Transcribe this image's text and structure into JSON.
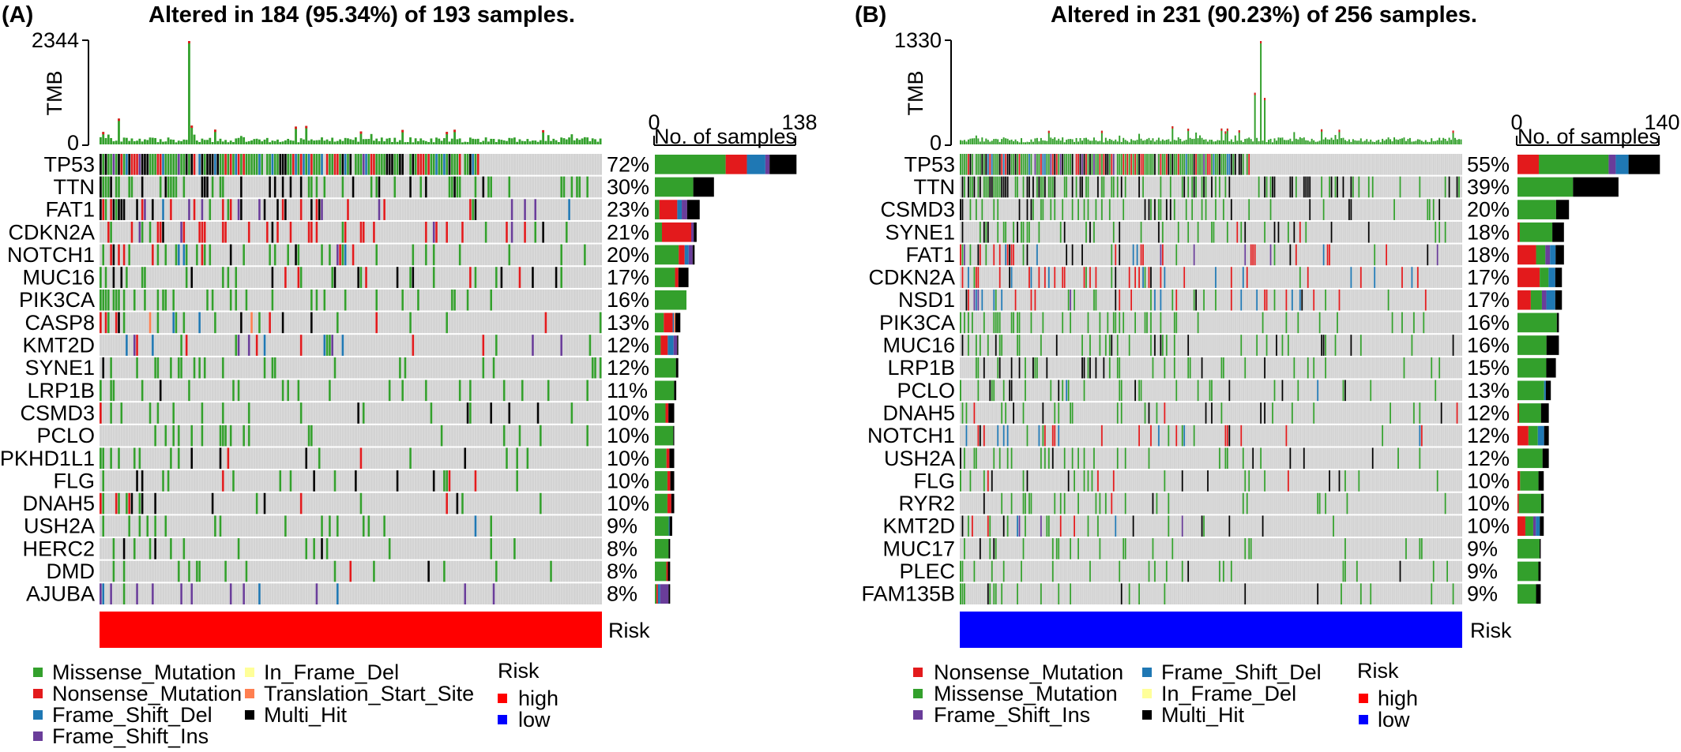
{
  "chart_data": [
    {
      "type": "heatmap",
      "panel_label": "(A)",
      "title": "Altered in 184 (95.34%) of 193 samples.",
      "n_samples": 193,
      "tmb": {
        "axis_label": "TMB",
        "max_label": "2344",
        "min_label": "0",
        "max": 2344
      },
      "bar_axis": {
        "title": "No. of samples",
        "min_label": "0",
        "max_label": "138",
        "max": 138
      },
      "genes": [
        "TP53",
        "TTN",
        "FAT1",
        "CDKN2A",
        "NOTCH1",
        "MUC16",
        "PIK3CA",
        "CASP8",
        "KMT2D",
        "SYNE1",
        "LRP1B",
        "CSMD3",
        "PCLO",
        "PKHD1L1",
        "FLG",
        "DNAH5",
        "USH2A",
        "HERC2",
        "DMD",
        "AJUBA"
      ],
      "percents": [
        "72%",
        "30%",
        "23%",
        "21%",
        "20%",
        "17%",
        "16%",
        "13%",
        "12%",
        "12%",
        "11%",
        "10%",
        "10%",
        "10%",
        "10%",
        "10%",
        "9%",
        "8%",
        "8%",
        "8%"
      ],
      "percent_values": [
        72,
        30,
        23,
        21,
        20,
        17,
        16,
        13,
        12,
        12,
        11,
        10,
        10,
        10,
        10,
        10,
        9,
        8,
        8,
        8
      ],
      "sample_counts": [
        139,
        58,
        44,
        41,
        39,
        33,
        31,
        25,
        23,
        23,
        21,
        19,
        19,
        19,
        19,
        19,
        17,
        15,
        15,
        15
      ],
      "bar_mix": [
        {
          "Missense_Mutation": 0.5,
          "Nonsense_Mutation": 0.15,
          "Frame_Shift_Del": 0.13,
          "Frame_Shift_Ins": 0.03,
          "Multi_Hit": 0.19
        },
        {
          "Missense_Mutation": 0.65,
          "Multi_Hit": 0.35
        },
        {
          "Nonsense_Mutation": 0.4,
          "Frame_Shift_Del": 0.1,
          "Frame_Shift_Ins": 0.12,
          "Missense_Mutation": 0.1,
          "Multi_Hit": 0.28
        },
        {
          "Missense_Mutation": 0.17,
          "Nonsense_Mutation": 0.7,
          "Frame_Shift_Ins": 0.06,
          "Multi_Hit": 0.07
        },
        {
          "Missense_Mutation": 0.6,
          "Nonsense_Mutation": 0.15,
          "Frame_Shift_Del": 0.1,
          "Frame_Shift_Ins": 0.1,
          "Multi_Hit": 0.05
        },
        {
          "Missense_Mutation": 0.6,
          "Nonsense_Mutation": 0.1,
          "Multi_Hit": 0.3
        },
        {
          "Missense_Mutation": 1.0
        },
        {
          "Missense_Mutation": 0.35,
          "Nonsense_Mutation": 0.35,
          "Frame_Shift_Del": 0.05,
          "Translation_Start_Site": 0.05,
          "Multi_Hit": 0.2
        },
        {
          "Missense_Mutation": 0.25,
          "Nonsense_Mutation": 0.3,
          "Frame_Shift_Del": 0.25,
          "Frame_Shift_Ins": 0.15,
          "Multi_Hit": 0.05
        },
        {
          "Missense_Mutation": 0.9,
          "Multi_Hit": 0.1
        },
        {
          "Missense_Mutation": 0.9,
          "Multi_Hit": 0.1
        },
        {
          "Missense_Mutation": 0.55,
          "Nonsense_Mutation": 0.15,
          "Multi_Hit": 0.3
        },
        {
          "Missense_Mutation": 0.95,
          "Multi_Hit": 0.05
        },
        {
          "Missense_Mutation": 0.6,
          "Nonsense_Mutation": 0.15,
          "Multi_Hit": 0.25
        },
        {
          "Missense_Mutation": 0.65,
          "Nonsense_Mutation": 0.15,
          "Multi_Hit": 0.2
        },
        {
          "Missense_Mutation": 0.65,
          "Nonsense_Mutation": 0.2,
          "Multi_Hit": 0.15
        },
        {
          "Missense_Mutation": 0.8,
          "Frame_Shift_Del": 0.05,
          "Multi_Hit": 0.15
        },
        {
          "Missense_Mutation": 0.9,
          "Multi_Hit": 0.1
        },
        {
          "Missense_Mutation": 0.75,
          "Nonsense_Mutation": 0.1,
          "Multi_Hit": 0.15
        },
        {
          "Frame_Shift_Ins": 0.55,
          "Frame_Shift_Del": 0.15,
          "Nonsense_Mutation": 0.1,
          "Missense_Mutation": 0.1,
          "Multi_Hit": 0.1
        }
      ],
      "risk_label": "Risk",
      "risk_group": "high",
      "legend": {
        "items": [
          {
            "label": "Missense_Mutation",
            "color": "#33a02c"
          },
          {
            "label": "Nonsense_Mutation",
            "color": "#e31a1c"
          },
          {
            "label": "Frame_Shift_Del",
            "color": "#1f78b4"
          },
          {
            "label": "Frame_Shift_Ins",
            "color": "#6a3d9a"
          },
          {
            "label": "In_Frame_Del",
            "color": "#ffff99"
          },
          {
            "label": "Translation_Start_Site",
            "color": "#ff7f50"
          },
          {
            "label": "Multi_Hit",
            "color": "#000000"
          }
        ],
        "risk_title": "Risk",
        "risk_items": [
          {
            "label": "high",
            "color": "#ff0000"
          },
          {
            "label": "low",
            "color": "#0000ff"
          }
        ]
      }
    },
    {
      "type": "heatmap",
      "panel_label": "(B)",
      "title": "Altered in 231 (90.23%) of 256 samples.",
      "n_samples": 256,
      "tmb": {
        "axis_label": "TMB",
        "max_label": "1330",
        "min_label": "0",
        "max": 1330
      },
      "bar_axis": {
        "title": "No. of samples",
        "min_label": "0",
        "max_label": "140",
        "max": 140
      },
      "genes": [
        "TP53",
        "TTN",
        "CSMD3",
        "SYNE1",
        "FAT1",
        "CDKN2A",
        "NSD1",
        "PIK3CA",
        "MUC16",
        "LRP1B",
        "PCLO",
        "DNAH5",
        "NOTCH1",
        "USH2A",
        "FLG",
        "RYR2",
        "KMT2D",
        "MUC17",
        "PLEC",
        "FAM135B"
      ],
      "percents": [
        "55%",
        "39%",
        "20%",
        "18%",
        "18%",
        "17%",
        "17%",
        "16%",
        "16%",
        "15%",
        "13%",
        "12%",
        "12%",
        "12%",
        "10%",
        "10%",
        "10%",
        "9%",
        "9%",
        "9%"
      ],
      "percent_values": [
        55,
        39,
        20,
        18,
        18,
        17,
        17,
        16,
        16,
        15,
        13,
        12,
        12,
        12,
        10,
        10,
        10,
        9,
        9,
        9
      ],
      "sample_counts": [
        141,
        100,
        51,
        46,
        46,
        44,
        44,
        41,
        41,
        38,
        33,
        31,
        31,
        31,
        26,
        26,
        26,
        23,
        23,
        23
      ],
      "bar_mix": [
        {
          "Nonsense_Mutation": 0.15,
          "Missense_Mutation": 0.49,
          "Frame_Shift_Ins": 0.05,
          "Frame_Shift_Del": 0.09,
          "Multi_Hit": 0.22
        },
        {
          "Missense_Mutation": 0.55,
          "Multi_Hit": 0.45
        },
        {
          "Missense_Mutation": 0.75,
          "Multi_Hit": 0.25
        },
        {
          "Missense_Mutation": 0.7,
          "Nonsense_Mutation": 0.05,
          "Multi_Hit": 0.25
        },
        {
          "Nonsense_Mutation": 0.4,
          "Missense_Mutation": 0.2,
          "Frame_Shift_Del": 0.12,
          "Frame_Shift_Ins": 0.1,
          "Multi_Hit": 0.18
        },
        {
          "Nonsense_Mutation": 0.5,
          "Missense_Mutation": 0.2,
          "Frame_Shift_Del": 0.15,
          "Multi_Hit": 0.15
        },
        {
          "Nonsense_Mutation": 0.3,
          "Missense_Mutation": 0.25,
          "Frame_Shift_Del": 0.2,
          "Frame_Shift_Ins": 0.1,
          "Multi_Hit": 0.15
        },
        {
          "Missense_Mutation": 0.95,
          "Multi_Hit": 0.05
        },
        {
          "Missense_Mutation": 0.7,
          "Multi_Hit": 0.3
        },
        {
          "Missense_Mutation": 0.75,
          "Multi_Hit": 0.25
        },
        {
          "Missense_Mutation": 0.8,
          "Frame_Shift_Del": 0.05,
          "Multi_Hit": 0.15
        },
        {
          "Missense_Mutation": 0.7,
          "Nonsense_Mutation": 0.05,
          "Multi_Hit": 0.25
        },
        {
          "Nonsense_Mutation": 0.35,
          "Missense_Mutation": 0.3,
          "Frame_Shift_Del": 0.2,
          "Multi_Hit": 0.15
        },
        {
          "Missense_Mutation": 0.8,
          "Multi_Hit": 0.2
        },
        {
          "Missense_Mutation": 0.7,
          "Nonsense_Mutation": 0.1,
          "Multi_Hit": 0.2
        },
        {
          "Missense_Mutation": 0.85,
          "Nonsense_Mutation": 0.05,
          "Multi_Hit": 0.1
        },
        {
          "Nonsense_Mutation": 0.3,
          "Missense_Mutation": 0.3,
          "Frame_Shift_Del": 0.15,
          "Frame_Shift_Ins": 0.1,
          "Multi_Hit": 0.15
        },
        {
          "Missense_Mutation": 0.95,
          "Multi_Hit": 0.05
        },
        {
          "Missense_Mutation": 0.9,
          "Multi_Hit": 0.1
        },
        {
          "Missense_Mutation": 0.8,
          "Multi_Hit": 0.2
        }
      ],
      "risk_label": "Risk",
      "risk_group": "low",
      "legend": {
        "items": [
          {
            "label": "Nonsense_Mutation",
            "color": "#e31a1c"
          },
          {
            "label": "Missense_Mutation",
            "color": "#33a02c"
          },
          {
            "label": "Frame_Shift_Ins",
            "color": "#6a3d9a"
          },
          {
            "label": "Frame_Shift_Del",
            "color": "#1f78b4"
          },
          {
            "label": "In_Frame_Del",
            "color": "#ffff99"
          },
          {
            "label": "Multi_Hit",
            "color": "#000000"
          }
        ],
        "risk_title": "Risk",
        "risk_items": [
          {
            "label": "high",
            "color": "#ff0000"
          },
          {
            "label": "low",
            "color": "#0000ff"
          }
        ]
      }
    }
  ]
}
